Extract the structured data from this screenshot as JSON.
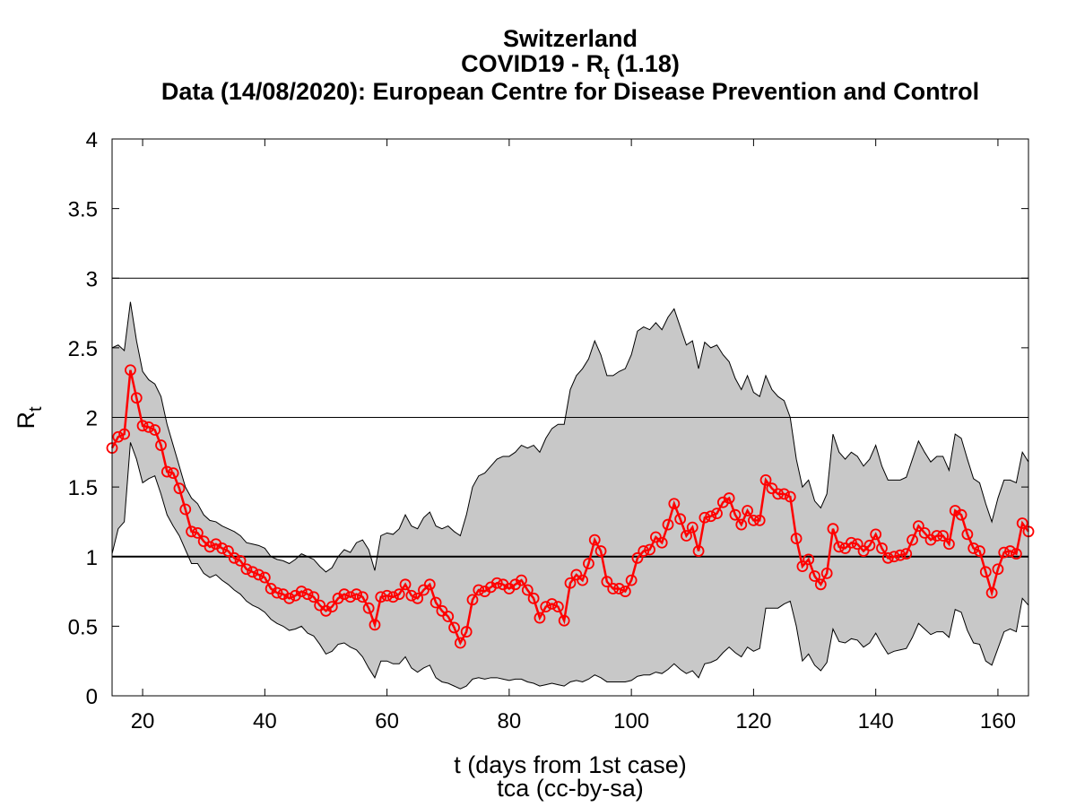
{
  "chart_data": {
    "type": "line",
    "title": "Switzerland",
    "subtitle": {
      "text": "COVID19 - R",
      "sub": "t",
      "after": " (1.18)"
    },
    "source": "Data (14/08/2020): European Centre for Disease Prevention and Control",
    "xlabel": "t (days from 1st case)",
    "footer": "tca (cc-by-sa)",
    "ylabel": {
      "text": "R",
      "sub": "t"
    },
    "xlim": [
      15,
      165
    ],
    "ylim": [
      0,
      4
    ],
    "xticks": [
      20,
      40,
      60,
      80,
      100,
      120,
      140,
      160
    ],
    "yticks": [
      0,
      0.5,
      1,
      1.5,
      2,
      2.5,
      3,
      3.5,
      4
    ],
    "reference_lines": [
      2,
      3
    ],
    "baseline_line": 1,
    "x": [
      15,
      16,
      17,
      18,
      19,
      20,
      21,
      22,
      23,
      24,
      25,
      26,
      27,
      28,
      29,
      30,
      31,
      32,
      33,
      34,
      35,
      36,
      37,
      38,
      39,
      40,
      41,
      42,
      43,
      44,
      45,
      46,
      47,
      48,
      49,
      50,
      51,
      52,
      53,
      54,
      55,
      56,
      57,
      58,
      59,
      60,
      61,
      62,
      63,
      64,
      65,
      66,
      67,
      68,
      69,
      70,
      71,
      72,
      73,
      74,
      75,
      76,
      77,
      78,
      79,
      80,
      81,
      82,
      83,
      84,
      85,
      86,
      87,
      88,
      89,
      90,
      91,
      92,
      93,
      94,
      95,
      96,
      97,
      98,
      99,
      100,
      101,
      102,
      103,
      104,
      105,
      106,
      107,
      108,
      109,
      110,
      111,
      112,
      113,
      114,
      115,
      116,
      117,
      118,
      119,
      120,
      121,
      122,
      123,
      124,
      125,
      126,
      127,
      128,
      129,
      130,
      131,
      132,
      133,
      134,
      135,
      136,
      137,
      138,
      139,
      140,
      141,
      142,
      143,
      144,
      145,
      146,
      147,
      148,
      149,
      150,
      151,
      152,
      153,
      154,
      155,
      156,
      157,
      158,
      159,
      160,
      161,
      162,
      163,
      164,
      165
    ],
    "series": [
      {
        "color": "#ff0000",
        "values": [
          1.78,
          1.86,
          1.88,
          2.34,
          2.14,
          1.94,
          1.93,
          1.91,
          1.8,
          1.61,
          1.6,
          1.49,
          1.34,
          1.18,
          1.17,
          1.11,
          1.07,
          1.09,
          1.06,
          1.04,
          0.99,
          0.97,
          0.91,
          0.89,
          0.87,
          0.85,
          0.77,
          0.74,
          0.73,
          0.7,
          0.72,
          0.75,
          0.73,
          0.71,
          0.65,
          0.61,
          0.64,
          0.7,
          0.73,
          0.71,
          0.73,
          0.71,
          0.63,
          0.51,
          0.71,
          0.72,
          0.71,
          0.73,
          0.8,
          0.72,
          0.7,
          0.76,
          0.8,
          0.67,
          0.61,
          0.57,
          0.49,
          0.38,
          0.46,
          0.69,
          0.76,
          0.75,
          0.78,
          0.81,
          0.8,
          0.77,
          0.8,
          0.83,
          0.76,
          0.7,
          0.56,
          0.64,
          0.66,
          0.64,
          0.54,
          0.81,
          0.87,
          0.83,
          0.95,
          1.12,
          1.04,
          0.82,
          0.77,
          0.77,
          0.75,
          0.83,
          0.99,
          1.04,
          1.05,
          1.14,
          1.1,
          1.23,
          1.38,
          1.27,
          1.15,
          1.21,
          1.04,
          1.28,
          1.29,
          1.31,
          1.39,
          1.42,
          1.3,
          1.23,
          1.33,
          1.26,
          1.26,
          1.55,
          1.49,
          1.45,
          1.45,
          1.43,
          1.13,
          0.93,
          0.98,
          0.86,
          0.8,
          0.88,
          1.2,
          1.07,
          1.06,
          1.1,
          1.09,
          1.04,
          1.08,
          1.16,
          1.06,
          0.99,
          1.0,
          1.01,
          1.02,
          1.12,
          1.22,
          1.17,
          1.12,
          1.15,
          1.15,
          1.09,
          1.33,
          1.3,
          1.16,
          1.06,
          1.04,
          0.89,
          0.74,
          0.91,
          1.03,
          1.04,
          1.02,
          1.24,
          1.18
        ]
      }
    ],
    "band": {
      "color": "#c8c8c8",
      "upper": [
        2.5,
        2.52,
        2.48,
        2.83,
        2.55,
        2.33,
        2.27,
        2.24,
        2.15,
        1.95,
        1.8,
        1.65,
        1.5,
        1.42,
        1.38,
        1.3,
        1.26,
        1.25,
        1.22,
        1.2,
        1.18,
        1.15,
        1.1,
        1.09,
        1.08,
        1.06,
        1.0,
        0.98,
        0.97,
        0.95,
        0.98,
        1.02,
        1.0,
        0.98,
        0.93,
        0.89,
        0.92,
        1.0,
        1.05,
        1.03,
        1.1,
        1.12,
        1.05,
        0.9,
        1.15,
        1.17,
        1.16,
        1.2,
        1.3,
        1.22,
        1.2,
        1.28,
        1.32,
        1.22,
        1.2,
        1.22,
        1.18,
        1.15,
        1.3,
        1.5,
        1.58,
        1.6,
        1.65,
        1.7,
        1.72,
        1.72,
        1.75,
        1.8,
        1.78,
        1.8,
        1.75,
        1.85,
        1.92,
        1.95,
        1.95,
        2.2,
        2.3,
        2.35,
        2.42,
        2.55,
        2.45,
        2.3,
        2.3,
        2.33,
        2.35,
        2.45,
        2.62,
        2.65,
        2.63,
        2.68,
        2.63,
        2.72,
        2.78,
        2.65,
        2.52,
        2.55,
        2.35,
        2.54,
        2.5,
        2.52,
        2.45,
        2.4,
        2.28,
        2.2,
        2.3,
        2.18,
        2.15,
        2.3,
        2.2,
        2.15,
        2.12,
        2.0,
        1.7,
        1.5,
        1.55,
        1.4,
        1.35,
        1.45,
        1.88,
        1.75,
        1.7,
        1.75,
        1.72,
        1.65,
        1.7,
        1.8,
        1.65,
        1.55,
        1.55,
        1.55,
        1.57,
        1.7,
        1.83,
        1.75,
        1.68,
        1.72,
        1.72,
        1.62,
        1.88,
        1.85,
        1.7,
        1.56,
        1.53,
        1.38,
        1.25,
        1.42,
        1.55,
        1.55,
        1.53,
        1.75,
        1.68
      ],
      "lower": [
        1.02,
        1.2,
        1.25,
        1.82,
        1.7,
        1.53,
        1.56,
        1.58,
        1.45,
        1.3,
        1.22,
        1.15,
        1.05,
        0.95,
        0.95,
        0.88,
        0.85,
        0.87,
        0.83,
        0.8,
        0.76,
        0.73,
        0.68,
        0.65,
        0.63,
        0.6,
        0.55,
        0.52,
        0.5,
        0.47,
        0.48,
        0.5,
        0.45,
        0.43,
        0.37,
        0.3,
        0.32,
        0.37,
        0.38,
        0.35,
        0.33,
        0.28,
        0.2,
        0.13,
        0.25,
        0.25,
        0.23,
        0.23,
        0.28,
        0.2,
        0.17,
        0.2,
        0.22,
        0.13,
        0.1,
        0.09,
        0.07,
        0.05,
        0.07,
        0.12,
        0.13,
        0.12,
        0.13,
        0.13,
        0.12,
        0.11,
        0.12,
        0.12,
        0.1,
        0.09,
        0.07,
        0.08,
        0.09,
        0.08,
        0.07,
        0.1,
        0.11,
        0.1,
        0.12,
        0.15,
        0.13,
        0.1,
        0.1,
        0.1,
        0.1,
        0.11,
        0.14,
        0.15,
        0.15,
        0.17,
        0.16,
        0.19,
        0.23,
        0.19,
        0.16,
        0.18,
        0.13,
        0.23,
        0.24,
        0.26,
        0.31,
        0.35,
        0.31,
        0.28,
        0.35,
        0.32,
        0.34,
        0.63,
        0.63,
        0.63,
        0.66,
        0.68,
        0.5,
        0.25,
        0.3,
        0.22,
        0.18,
        0.24,
        0.48,
        0.39,
        0.38,
        0.41,
        0.4,
        0.35,
        0.38,
        0.45,
        0.37,
        0.3,
        0.32,
        0.33,
        0.34,
        0.42,
        0.52,
        0.48,
        0.44,
        0.46,
        0.46,
        0.42,
        0.62,
        0.6,
        0.47,
        0.38,
        0.37,
        0.25,
        0.22,
        0.34,
        0.46,
        0.48,
        0.46,
        0.7,
        0.65
      ]
    }
  }
}
